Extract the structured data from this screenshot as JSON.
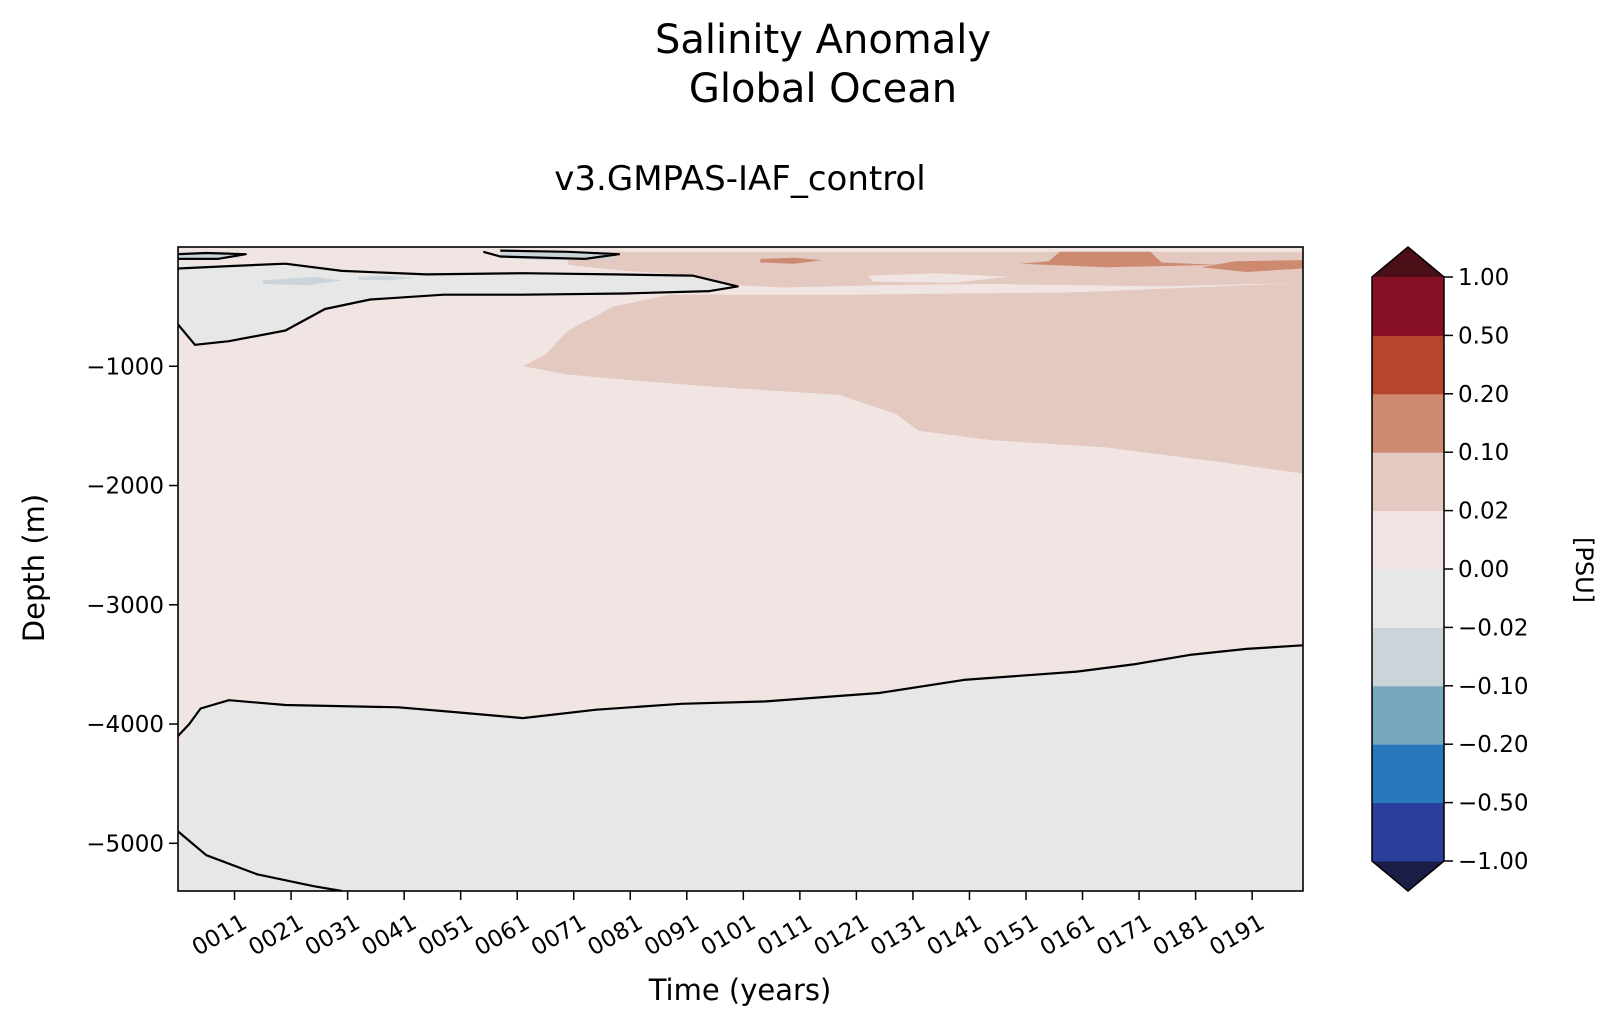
{
  "chart_data": {
    "type": "heatmap",
    "title": [
      "Salinity Anomaly",
      "Global Ocean"
    ],
    "subtitle": "v3.GMPAS-IAF_control",
    "xlabel": "Time (years)",
    "ylabel": "Depth (m)",
    "xlim": [
      1,
      200
    ],
    "ylim": [
      -5400,
      0
    ],
    "x_ticks": [
      {
        "value": 11,
        "label": "0011"
      },
      {
        "value": 21,
        "label": "0021"
      },
      {
        "value": 31,
        "label": "0031"
      },
      {
        "value": 41,
        "label": "0041"
      },
      {
        "value": 51,
        "label": "0051"
      },
      {
        "value": 61,
        "label": "0061"
      },
      {
        "value": 71,
        "label": "0071"
      },
      {
        "value": 81,
        "label": "0081"
      },
      {
        "value": 91,
        "label": "0091"
      },
      {
        "value": 101,
        "label": "0101"
      },
      {
        "value": 111,
        "label": "0111"
      },
      {
        "value": 121,
        "label": "0121"
      },
      {
        "value": 131,
        "label": "0131"
      },
      {
        "value": 141,
        "label": "0141"
      },
      {
        "value": 151,
        "label": "0151"
      },
      {
        "value": 161,
        "label": "0161"
      },
      {
        "value": 171,
        "label": "0171"
      },
      {
        "value": 181,
        "label": "0181"
      },
      {
        "value": 191,
        "label": "0191"
      }
    ],
    "y_ticks": [
      {
        "value": -1000,
        "label": "−1000"
      },
      {
        "value": -2000,
        "label": "−2000"
      },
      {
        "value": -3000,
        "label": "−3000"
      },
      {
        "value": -4000,
        "label": "−4000"
      },
      {
        "value": -5000,
        "label": "−5000"
      }
    ],
    "colorbar": {
      "label": "[PSU]",
      "levels": [
        {
          "value": -1.0,
          "label": "−1.00"
        },
        {
          "value": -0.5,
          "label": "−0.50"
        },
        {
          "value": -0.2,
          "label": "−0.20"
        },
        {
          "value": -0.1,
          "label": "−0.10"
        },
        {
          "value": -0.02,
          "label": "−0.02"
        },
        {
          "value": 0.0,
          "label": "0.00"
        },
        {
          "value": 0.02,
          "label": "0.02"
        },
        {
          "value": 0.1,
          "label": "0.10"
        },
        {
          "value": 0.2,
          "label": "0.20"
        },
        {
          "value": 0.5,
          "label": "0.50"
        },
        {
          "value": 1.0,
          "label": "1.00"
        }
      ],
      "band_colors": [
        "#2b3e9b",
        "#2878bb",
        "#76a9be",
        "#cbd4d9",
        "#e8e7e8",
        "#f0e5e3",
        "#e4c9c1",
        "#cd8a70",
        "#b7452e",
        "#870f26"
      ],
      "under_color": "#1a1d45",
      "over_color": "#4b0f18"
    },
    "regions": [
      {
        "name": "positive-deep-band",
        "color": "#e4c9c1",
        "points": [
          [
            62,
            -1000
          ],
          [
            66,
            -900
          ],
          [
            70,
            -700
          ],
          [
            78,
            -500
          ],
          [
            88,
            -400
          ],
          [
            100,
            -400
          ],
          [
            120,
            -400
          ],
          [
            160,
            -380
          ],
          [
            200,
            -300
          ],
          [
            200,
            -1900
          ],
          [
            185,
            -1800
          ],
          [
            165,
            -1680
          ],
          [
            145,
            -1620
          ],
          [
            132,
            -1540
          ],
          [
            128,
            -1400
          ],
          [
            118,
            -1240
          ],
          [
            98,
            -1180
          ],
          [
            82,
            -1120
          ],
          [
            70,
            -1070
          ]
        ]
      },
      {
        "name": "positive-surface-band",
        "color": "#e4c9c1",
        "points": [
          [
            70,
            -40
          ],
          [
            200,
            -40
          ],
          [
            200,
            -300
          ],
          [
            175,
            -330
          ],
          [
            145,
            -310
          ],
          [
            125,
            -320
          ],
          [
            108,
            -340
          ],
          [
            100,
            -320
          ],
          [
            96,
            -300
          ],
          [
            90,
            -230
          ],
          [
            80,
            -200
          ],
          [
            70,
            -150
          ]
        ]
      },
      {
        "name": "negative-shallow-lens",
        "color": "#e8e7e8",
        "points": [
          [
            1,
            -120
          ],
          [
            10,
            -170
          ],
          [
            20,
            -140
          ],
          [
            30,
            -220
          ],
          [
            45,
            -230
          ],
          [
            62,
            -220
          ],
          [
            78,
            -230
          ],
          [
            92,
            -240
          ],
          [
            100,
            -330
          ],
          [
            95,
            -370
          ],
          [
            80,
            -390
          ],
          [
            62,
            -400
          ],
          [
            48,
            -400
          ],
          [
            35,
            -440
          ],
          [
            27,
            -520
          ],
          [
            20,
            -700
          ],
          [
            10,
            -790
          ],
          [
            4,
            -820
          ],
          [
            1,
            -700
          ]
        ]
      },
      {
        "name": "negative-deep-layer",
        "color": "#e8e7e8",
        "points": [
          [
            1,
            -4300
          ],
          [
            3,
            -4000
          ],
          [
            5,
            -3870
          ],
          [
            10,
            -3800
          ],
          [
            20,
            -3840
          ],
          [
            40,
            -3860
          ],
          [
            50,
            -3900
          ],
          [
            62,
            -3950
          ],
          [
            75,
            -3880
          ],
          [
            90,
            -3830
          ],
          [
            105,
            -3810
          ],
          [
            125,
            -3740
          ],
          [
            140,
            -3630
          ],
          [
            160,
            -3560
          ],
          [
            170,
            -3500
          ],
          [
            180,
            -3420
          ],
          [
            190,
            -3370
          ],
          [
            200,
            -3340
          ],
          [
            200,
            -5400
          ],
          [
            1,
            -5400
          ]
        ]
      },
      {
        "name": "surface-freshening-patch-1",
        "color": "#cbd4d9",
        "points": [
          [
            1,
            -40
          ],
          [
            10,
            -40
          ],
          [
            12,
            -90
          ],
          [
            6,
            -100
          ],
          [
            1,
            -90
          ]
        ]
      },
      {
        "name": "surface-freshening-patch-2",
        "color": "#cbd4d9",
        "points": [
          [
            16,
            -280
          ],
          [
            25,
            -250
          ],
          [
            30,
            -280
          ],
          [
            24,
            -320
          ],
          [
            16,
            -310
          ]
        ]
      },
      {
        "name": "surface-freshening-patch-3",
        "color": "#cbd4d9",
        "points": [
          [
            33,
            -250
          ],
          [
            38,
            -240
          ],
          [
            43,
            -260
          ],
          [
            38,
            -280
          ],
          [
            33,
            -275
          ]
        ]
      },
      {
        "name": "surface-freshening-patch-4",
        "color": "#cbd4d9",
        "points": [
          [
            58,
            -40
          ],
          [
            76,
            -40
          ],
          [
            78,
            -100
          ],
          [
            66,
            -110
          ],
          [
            58,
            -90
          ]
        ]
      },
      {
        "name": "surface-salinity-maximum",
        "color": "#cd8a70",
        "points": [
          [
            157,
            -40
          ],
          [
            173,
            -40
          ],
          [
            175,
            -130
          ],
          [
            185,
            -150
          ],
          [
            165,
            -170
          ],
          [
            150,
            -140
          ],
          [
            155,
            -120
          ]
        ]
      },
      {
        "name": "surface-salinity-streak",
        "color": "#cd8a70",
        "points": [
          [
            188,
            -120
          ],
          [
            200,
            -110
          ],
          [
            200,
            -180
          ],
          [
            190,
            -210
          ],
          [
            182,
            -170
          ]
        ]
      },
      {
        "name": "salinity-streak-2",
        "color": "#cd8a70",
        "points": [
          [
            104,
            -100
          ],
          [
            110,
            -90
          ],
          [
            115,
            -110
          ],
          [
            110,
            -140
          ],
          [
            104,
            -130
          ]
        ]
      },
      {
        "name": "near-zero-wedge",
        "color": "#f0e5e3",
        "points": [
          [
            123,
            -240
          ],
          [
            135,
            -220
          ],
          [
            148,
            -250
          ],
          [
            138,
            -300
          ],
          [
            124,
            -290
          ]
        ]
      }
    ],
    "zero_contours": [
      [
        [
          1,
          -4100
        ],
        [
          3,
          -4000
        ],
        [
          5,
          -3870
        ],
        [
          10,
          -3800
        ],
        [
          20,
          -3840
        ],
        [
          40,
          -3860
        ],
        [
          50,
          -3900
        ],
        [
          62,
          -3950
        ],
        [
          75,
          -3880
        ],
        [
          90,
          -3830
        ],
        [
          105,
          -3810
        ],
        [
          125,
          -3740
        ],
        [
          140,
          -3630
        ],
        [
          160,
          -3560
        ],
        [
          170,
          -3500
        ],
        [
          180,
          -3420
        ],
        [
          190,
          -3370
        ],
        [
          200,
          -3340
        ]
      ],
      [
        [
          1,
          -4900
        ],
        [
          6,
          -5100
        ],
        [
          15,
          -5260
        ],
        [
          25,
          -5360
        ],
        [
          30,
          -5400
        ]
      ],
      [
        [
          1,
          -180
        ],
        [
          10,
          -160
        ],
        [
          20,
          -140
        ],
        [
          30,
          -200
        ],
        [
          45,
          -230
        ],
        [
          62,
          -220
        ],
        [
          78,
          -230
        ],
        [
          92,
          -240
        ],
        [
          100,
          -330
        ],
        [
          95,
          -370
        ],
        [
          80,
          -390
        ],
        [
          62,
          -400
        ],
        [
          48,
          -400
        ],
        [
          35,
          -440
        ],
        [
          27,
          -520
        ],
        [
          20,
          -700
        ],
        [
          10,
          -790
        ],
        [
          4,
          -820
        ],
        [
          1,
          -650
        ]
      ],
      [
        [
          58,
          -30
        ],
        [
          70,
          -40
        ],
        [
          79,
          -60
        ],
        [
          73,
          -100
        ],
        [
          58,
          -80
        ],
        [
          55,
          -40
        ]
      ],
      [
        [
          1,
          -60
        ],
        [
          6,
          -50
        ],
        [
          13,
          -60
        ],
        [
          8,
          -100
        ],
        [
          1,
          -100
        ]
      ]
    ]
  }
}
